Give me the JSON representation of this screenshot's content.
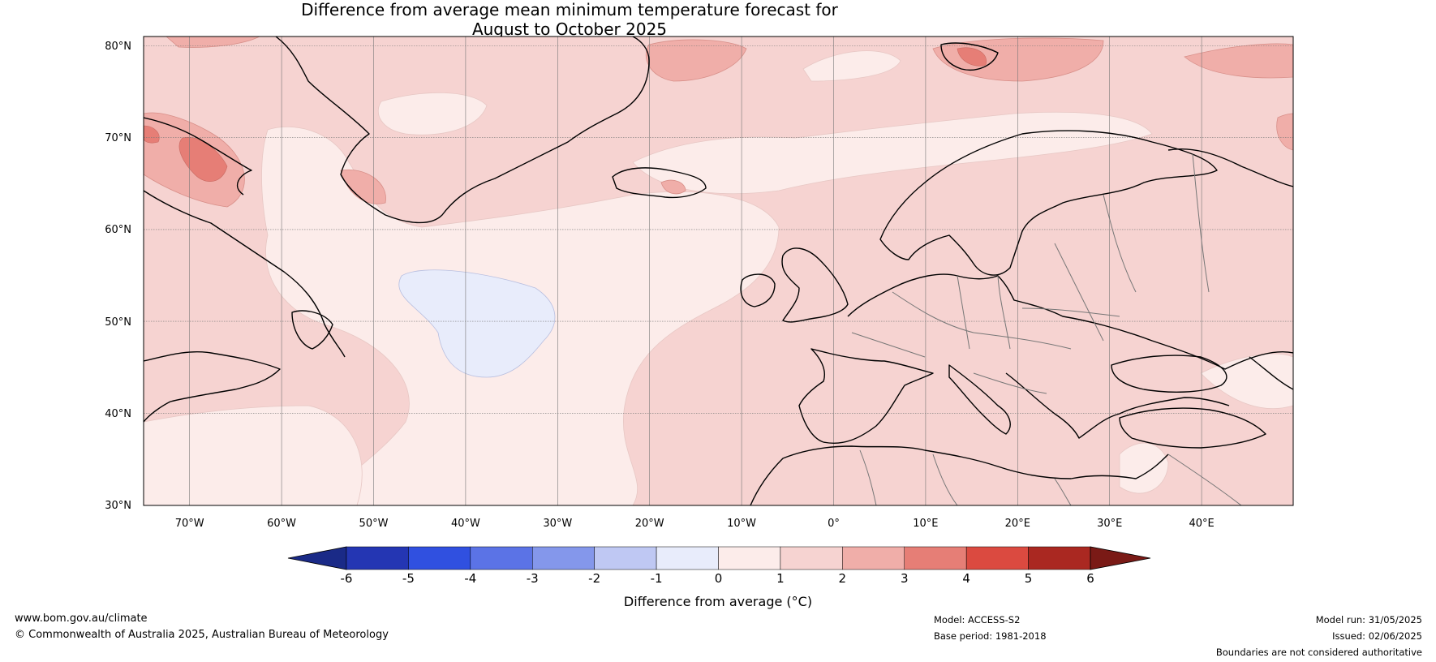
{
  "title": {
    "line1": "Difference from average mean minimum temperature forecast for",
    "line2": "August to October 2025"
  },
  "map": {
    "lat_labels": [
      "80°N",
      "70°N",
      "60°N",
      "50°N",
      "40°N",
      "30°N"
    ],
    "lon_labels": [
      "70°W",
      "60°W",
      "50°W",
      "40°W",
      "30°W",
      "20°W",
      "10°W",
      "0°",
      "10°E",
      "20°E",
      "30°E",
      "40°E"
    ]
  },
  "colorbar": {
    "ticks": [
      "-6",
      "-5",
      "-4",
      "-3",
      "-2",
      "-1",
      "0",
      "1",
      "2",
      "3",
      "4",
      "5",
      "6"
    ],
    "colors": [
      "#1a2a87",
      "#2436b3",
      "#3050e0",
      "#5b73e6",
      "#8497eb",
      "#bfc8f3",
      "#e8ecfb",
      "#fcecea",
      "#f6d3d1",
      "#f0aea9",
      "#e67e76",
      "#db4a40",
      "#aa2821",
      "#7a1a16"
    ],
    "label": "Difference from average (°C)"
  },
  "footer": {
    "website": "www.bom.gov.au/climate",
    "copyright": "© Commonwealth of Australia 2025, Australian Bureau of Meteorology",
    "model": "Model: ACCESS-S2",
    "base_period": "Base period: 1981-2018",
    "model_run": "Model run: 31/05/2025",
    "issued": "Issued: 02/06/2025",
    "boundaries": "Boundaries are not considered authoritative"
  }
}
